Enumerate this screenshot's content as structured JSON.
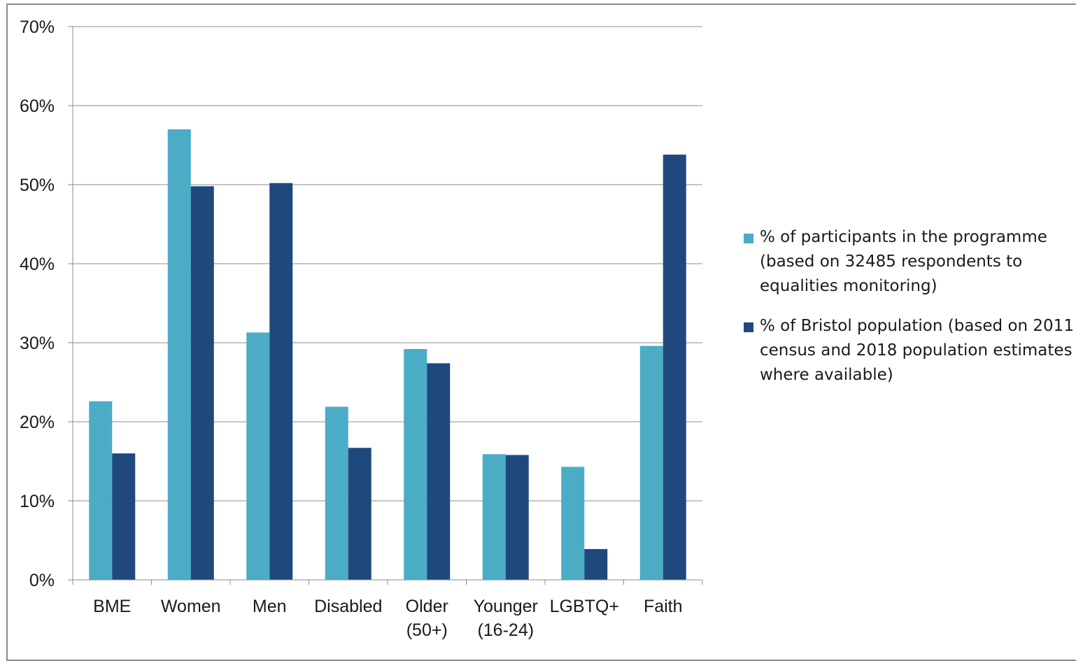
{
  "chart_data": {
    "type": "bar",
    "categories": [
      "BME",
      "Women",
      "Men",
      "Disabled",
      "Older\n(50+)",
      "Younger\n(16-24)",
      "LGBTQ+",
      "Faith"
    ],
    "series": [
      {
        "name": "% of participants in the programme\n(based on 32485 respondents to\nequalities monitoring)",
        "color": "#4BACC6",
        "values": [
          22.6,
          57.0,
          31.3,
          21.9,
          29.2,
          15.9,
          14.3,
          29.6
        ]
      },
      {
        "name": "% of Bristol population (based on 2011\ncensus and 2018 population estimates\nwhere available)",
        "color": "#1F497D",
        "values": [
          16.0,
          49.8,
          50.2,
          16.7,
          27.4,
          15.8,
          3.9,
          53.8
        ]
      }
    ],
    "ylim": [
      0,
      70
    ],
    "yticks": [
      "0%",
      "10%",
      "20%",
      "30%",
      "40%",
      "50%",
      "60%",
      "70%"
    ],
    "grid": true,
    "legend_position": "right",
    "title": "",
    "xlabel": "",
    "ylabel": ""
  }
}
